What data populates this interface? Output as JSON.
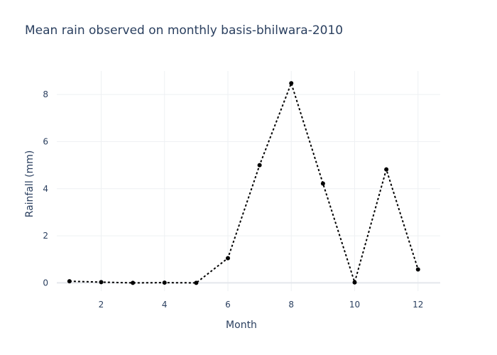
{
  "chart_data": {
    "type": "line",
    "title": "Mean rain observed on monthly basis-bhilwara-2010",
    "xlabel": "Month",
    "ylabel": "Rainfall (mm)",
    "x": [
      1,
      2,
      3,
      4,
      5,
      6,
      7,
      8,
      9,
      10,
      11,
      12
    ],
    "series": [
      {
        "values": [
          0.07,
          0.03,
          0.0,
          0.01,
          0.0,
          1.05,
          5.0,
          8.48,
          4.22,
          0.02,
          4.82,
          0.57
        ]
      }
    ],
    "xlim": [
      0.6,
      12.7
    ],
    "ylim": [
      -0.35,
      9.0
    ],
    "xticks": [
      2,
      4,
      6,
      8,
      10,
      12
    ],
    "yticks": [
      0,
      2,
      4,
      6,
      8
    ],
    "grid": true,
    "line_style": "dotted",
    "marker": "circle",
    "line_color": "#000000"
  }
}
